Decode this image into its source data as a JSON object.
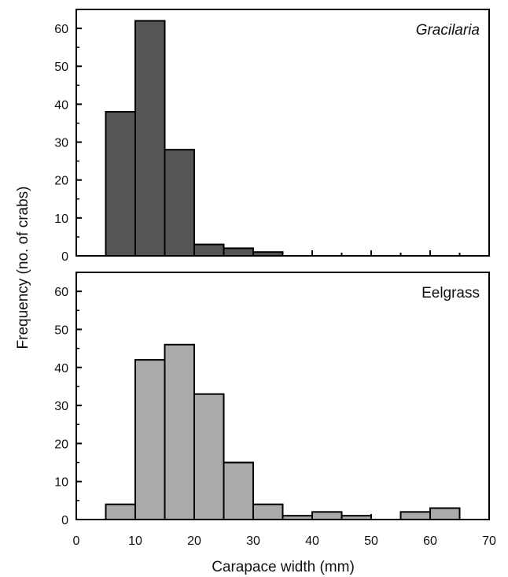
{
  "chart_data": [
    {
      "type": "bar",
      "title": "Gracilaria",
      "title_style": "italic",
      "fill_color": "#555555",
      "xlim": [
        0,
        70
      ],
      "ylim": [
        0,
        65
      ],
      "yticks": [
        "0",
        "10",
        "20",
        "30",
        "40",
        "50",
        "60"
      ],
      "bin_edges": [
        5,
        10,
        15,
        20,
        25,
        30,
        35,
        40,
        45,
        50,
        55,
        60,
        65
      ],
      "values": [
        38,
        62,
        28,
        3,
        2,
        1,
        0,
        0,
        0,
        0,
        0,
        0
      ]
    },
    {
      "type": "bar",
      "title": "Eelgrass",
      "title_style": "normal",
      "fill_color": "#aaaaaa",
      "xlim": [
        0,
        70
      ],
      "ylim": [
        0,
        65
      ],
      "yticks": [
        "0",
        "10",
        "20",
        "30",
        "40",
        "50",
        "60"
      ],
      "bin_edges": [
        5,
        10,
        15,
        20,
        25,
        30,
        35,
        40,
        45,
        50,
        55,
        60,
        65
      ],
      "values": [
        4,
        42,
        46,
        33,
        15,
        4,
        1,
        2,
        1,
        0,
        2,
        3
      ]
    }
  ],
  "shared": {
    "xticks": [
      "0",
      "10",
      "20",
      "30",
      "40",
      "50",
      "60",
      "70"
    ],
    "xlabel": "Carapace width (mm)",
    "ylabel": "Frequency (no. of crabs)"
  }
}
